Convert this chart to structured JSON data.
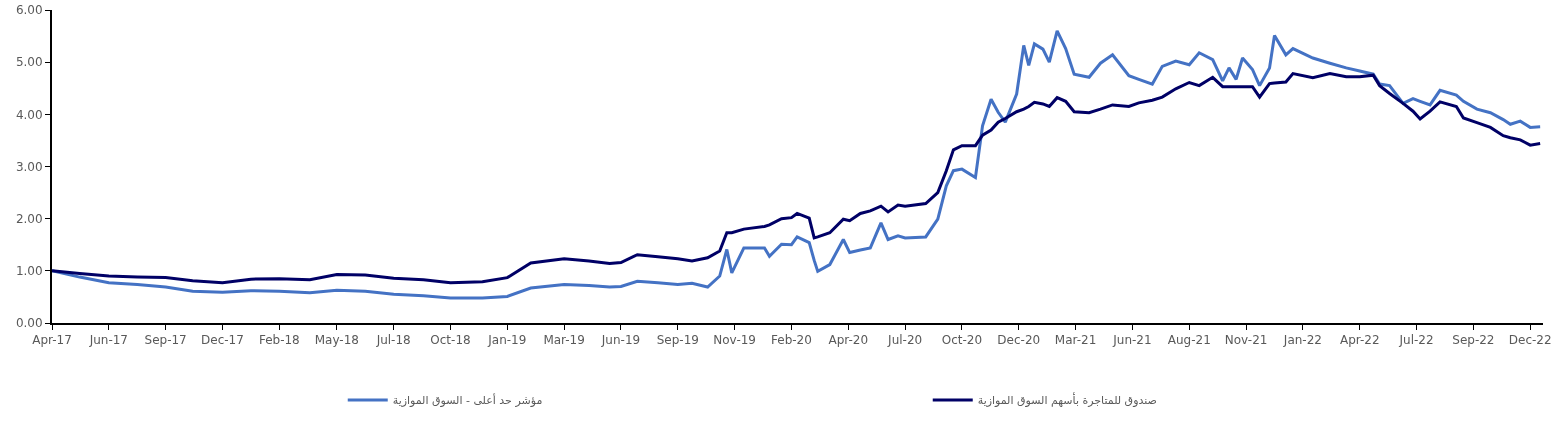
{
  "chart_data": {
    "type": "line",
    "legend": "bottom",
    "grid": false,
    "marker": "none",
    "line_style": "solid",
    "ylim": [
      0,
      6
    ],
    "yticks": [
      {
        "value": 0,
        "label": "0.00"
      },
      {
        "value": 1,
        "label": "1.00"
      },
      {
        "value": 2,
        "label": "2.00"
      },
      {
        "value": 3,
        "label": "3.00"
      },
      {
        "value": 4,
        "label": "4.00"
      },
      {
        "value": 5,
        "label": "5.00"
      },
      {
        "value": 6,
        "label": "6.00"
      }
    ],
    "xlim": [
      "2017-04-05",
      "2023-01-03"
    ],
    "xticks": [
      {
        "value": "2017-04-05",
        "label": "Apr-17"
      },
      {
        "value": "2017-06-24",
        "label": "Jun-17"
      },
      {
        "value": "2017-09-12",
        "label": "Sep-17"
      },
      {
        "value": "2017-12-01",
        "label": "Dec-17"
      },
      {
        "value": "2018-02-19",
        "label": "Feb-18"
      },
      {
        "value": "2018-05-11",
        "label": "May-18"
      },
      {
        "value": "2018-07-30",
        "label": "Jul-18"
      },
      {
        "value": "2018-10-18",
        "label": "Oct-18"
      },
      {
        "value": "2019-01-06",
        "label": "Jan-19"
      },
      {
        "value": "2019-03-27",
        "label": "Mar-19"
      },
      {
        "value": "2019-06-15",
        "label": "Jun-19"
      },
      {
        "value": "2019-09-03",
        "label": "Sep-19"
      },
      {
        "value": "2019-11-22",
        "label": "Nov-19"
      },
      {
        "value": "2020-02-10",
        "label": "Feb-20"
      },
      {
        "value": "2020-04-30",
        "label": "Apr-20"
      },
      {
        "value": "2020-07-19",
        "label": "Jul-20"
      },
      {
        "value": "2020-10-07",
        "label": "Oct-20"
      },
      {
        "value": "2020-12-26",
        "label": "Dec-20"
      },
      {
        "value": "2021-03-16",
        "label": "Mar-21"
      },
      {
        "value": "2021-06-04",
        "label": "Jun-21"
      },
      {
        "value": "2021-08-23",
        "label": "Aug-21"
      },
      {
        "value": "2021-11-11",
        "label": "Nov-21"
      },
      {
        "value": "2022-01-30",
        "label": "Jan-22"
      },
      {
        "value": "2022-04-20",
        "label": "Apr-22"
      },
      {
        "value": "2022-07-09",
        "label": "Jul-22"
      },
      {
        "value": "2022-09-27",
        "label": "Sep-22"
      },
      {
        "value": "2022-12-16",
        "label": "Dec-22"
      }
    ],
    "x": [
      "2017-04-05",
      "2017-05-14",
      "2017-06-24",
      "2017-08-03",
      "2017-09-12",
      "2017-10-20",
      "2017-12-01",
      "2018-01-10",
      "2018-02-19",
      "2018-04-03",
      "2018-05-11",
      "2018-06-20",
      "2018-07-30",
      "2018-09-10",
      "2018-10-18",
      "2018-12-02",
      "2019-01-06",
      "2019-02-08",
      "2019-03-27",
      "2019-05-01",
      "2019-05-30",
      "2019-06-15",
      "2019-07-08",
      "2019-08-06",
      "2019-09-03",
      "2019-09-23",
      "2019-10-15",
      "2019-11-01",
      "2019-11-11",
      "2019-11-18",
      "2019-12-05",
      "2020-01-03",
      "2020-01-10",
      "2020-01-27",
      "2020-02-10",
      "2020-02-18",
      "2020-03-06",
      "2020-03-13",
      "2020-03-18",
      "2020-04-04",
      "2020-04-23",
      "2020-05-02",
      "2020-05-17",
      "2020-05-31",
      "2020-06-15",
      "2020-06-25",
      "2020-07-09",
      "2020-07-19",
      "2020-08-17",
      "2020-09-03",
      "2020-09-15",
      "2020-09-25",
      "2020-10-07",
      "2020-10-26",
      "2020-11-05",
      "2020-11-17",
      "2020-11-27",
      "2020-12-07",
      "2020-12-23",
      "2021-01-02",
      "2021-01-09",
      "2021-01-17",
      "2021-01-29",
      "2021-02-07",
      "2021-02-18",
      "2021-03-02",
      "2021-03-14",
      "2021-04-04",
      "2021-04-20",
      "2021-05-07",
      "2021-05-30",
      "2021-06-13",
      "2021-07-02",
      "2021-07-16",
      "2021-08-04",
      "2021-08-23",
      "2021-09-06",
      "2021-09-25",
      "2021-10-09",
      "2021-10-18",
      "2021-10-28",
      "2021-11-06",
      "2021-11-20",
      "2021-11-30",
      "2021-12-14",
      "2021-12-21",
      "2022-01-06",
      "2022-01-16",
      "2022-02-13",
      "2022-03-09",
      "2022-04-01",
      "2022-04-20",
      "2022-05-09",
      "2022-05-18",
      "2022-06-01",
      "2022-06-20",
      "2022-07-04",
      "2022-07-14",
      "2022-07-28",
      "2022-08-11",
      "2022-09-03",
      "2022-09-13",
      "2022-10-02",
      "2022-10-21",
      "2022-11-08",
      "2022-11-18",
      "2022-12-02",
      "2022-12-16",
      "2022-12-30"
    ],
    "series": [
      {
        "name": "مؤشر حد أعلى - السوق الموازية",
        "color": "#4472c4",
        "values": [
          1.0,
          0.88,
          0.77,
          0.74,
          0.69,
          0.61,
          0.59,
          0.62,
          0.61,
          0.58,
          0.63,
          0.61,
          0.55,
          0.52,
          0.48,
          0.48,
          0.51,
          0.67,
          0.74,
          0.72,
          0.69,
          0.7,
          0.8,
          0.77,
          0.74,
          0.76,
          0.69,
          0.9,
          1.41,
          0.96,
          1.44,
          1.44,
          1.28,
          1.51,
          1.5,
          1.65,
          1.54,
          1.2,
          0.99,
          1.12,
          1.6,
          1.35,
          1.4,
          1.44,
          1.92,
          1.6,
          1.67,
          1.63,
          1.65,
          1.99,
          2.63,
          2.92,
          2.95,
          2.79,
          3.78,
          4.29,
          4.04,
          3.85,
          4.39,
          5.32,
          4.94,
          5.35,
          5.25,
          5.0,
          5.6,
          5.26,
          4.77,
          4.71,
          4.98,
          5.14,
          4.74,
          4.67,
          4.58,
          4.92,
          5.02,
          4.95,
          5.18,
          5.05,
          4.64,
          4.89,
          4.67,
          5.08,
          4.86,
          4.55,
          4.89,
          5.51,
          5.14,
          5.26,
          5.08,
          4.98,
          4.89,
          4.83,
          4.77,
          4.58,
          4.55,
          4.21,
          4.3,
          4.25,
          4.18,
          4.46,
          4.37,
          4.25,
          4.1,
          4.03,
          3.9,
          3.81,
          3.87,
          3.75,
          3.76
        ]
      },
      {
        "name": "صندوق للمتاجرة بأسهم السوق الموازية",
        "color": "#000066",
        "values": [
          1.0,
          0.95,
          0.9,
          0.88,
          0.87,
          0.81,
          0.77,
          0.84,
          0.85,
          0.83,
          0.93,
          0.92,
          0.86,
          0.83,
          0.77,
          0.79,
          0.87,
          1.15,
          1.23,
          1.19,
          1.14,
          1.16,
          1.31,
          1.27,
          1.23,
          1.19,
          1.25,
          1.38,
          1.73,
          1.73,
          1.8,
          1.85,
          1.88,
          2.0,
          2.02,
          2.1,
          2.01,
          1.63,
          1.65,
          1.73,
          1.99,
          1.96,
          2.1,
          2.15,
          2.24,
          2.13,
          2.26,
          2.24,
          2.29,
          2.5,
          2.92,
          3.32,
          3.4,
          3.4,
          3.6,
          3.7,
          3.85,
          3.92,
          4.05,
          4.1,
          4.15,
          4.23,
          4.2,
          4.15,
          4.32,
          4.25,
          4.05,
          4.03,
          4.1,
          4.18,
          4.15,
          4.22,
          4.27,
          4.33,
          4.49,
          4.61,
          4.55,
          4.71,
          4.53,
          4.53,
          4.53,
          4.53,
          4.53,
          4.33,
          4.59,
          4.6,
          4.62,
          4.78,
          4.7,
          4.78,
          4.72,
          4.72,
          4.75,
          4.55,
          4.4,
          4.21,
          4.06,
          3.91,
          4.06,
          4.24,
          4.15,
          3.93,
          3.84,
          3.75,
          3.59,
          3.55,
          3.51,
          3.41,
          3.44
        ]
      }
    ]
  }
}
